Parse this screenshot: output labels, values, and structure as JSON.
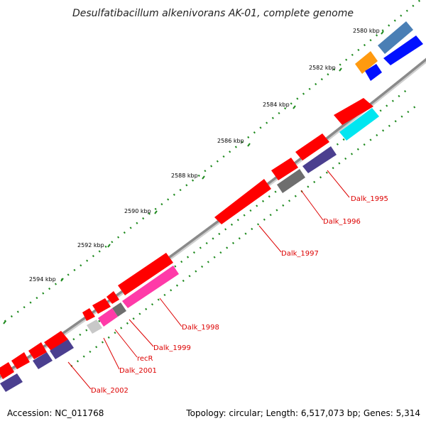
{
  "title": "Desulfatibacillum alkenivorans AK-01, complete genome",
  "ticks": [
    "2580 kbp",
    "2582 kbp",
    "2584 kbp",
    "2586 kbp",
    "2588 kbp",
    "2590 kbp",
    "2592 kbp",
    "2594 kbp"
  ],
  "gene_labels": [
    "Dalk_1995",
    "Dalk_1996",
    "Dalk_1997",
    "Dalk_1998",
    "Dalk_1999",
    "recR",
    "Dalk_2001",
    "Dalk_2002"
  ],
  "footer": {
    "accession": "Accession: NC_011768",
    "summary": "Topology: circular; Length: 6,517,073 bp; Genes: 5,314"
  },
  "colors": {
    "backbone": "#8a8a8a",
    "tick_dots": "#1e8a1e",
    "label_red": "#dd0000",
    "gene_red": "#ff0000",
    "gene_navy": "#4b3f8f",
    "gene_magenta": "#ff3aa8",
    "gene_gray": "#6e6e6e",
    "gene_cyan": "#00e6f0",
    "gene_orange": "#ff9a10",
    "gene_blue": "#0010ff",
    "gene_steel": "#4a7fb5"
  }
}
